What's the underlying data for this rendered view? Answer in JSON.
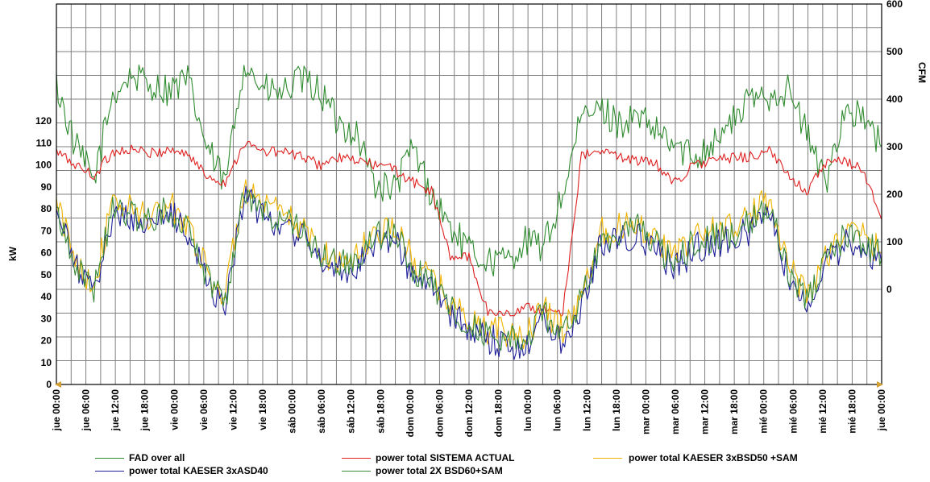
{
  "chart_data": {
    "type": "line",
    "ylabel_left": "kW",
    "ylabel_right": "CFM",
    "ylim_left": [
      0,
      120
    ],
    "yticks_left": [
      "0",
      "10",
      "20",
      "30",
      "40",
      "50",
      "60",
      "70",
      "80",
      "90",
      "100",
      "110",
      "120"
    ],
    "yticks_right": [
      "0",
      "100",
      "200",
      "300",
      "400",
      "500",
      "600"
    ],
    "ylim_right": [
      -200,
      600
    ],
    "grid": true,
    "legend_position": "bottom",
    "x_ticks": [
      "jue 00:00",
      "jue 06:00",
      "jue 12:00",
      "jue 18:00",
      "vie 00:00",
      "vie 06:00",
      "vie 12:00",
      "vie 18:00",
      "sáb 00:00",
      "sáb 06:00",
      "sáb 12:00",
      "sáb 18:00",
      "dom 00:00",
      "dom 06:00",
      "dom 12:00",
      "dom 18:00",
      "lun 00:00",
      "lun 06:00",
      "lun 12:00",
      "lun 18:00",
      "mar 00:00",
      "mar 06:00",
      "mar 12:00",
      "mar 18:00",
      "mié 00:00",
      "mié 06:00",
      "mié 12:00",
      "mié 18:00",
      "jue 00:00"
    ],
    "x_hours_per_tick": 6,
    "series": [
      {
        "name": "FAD over all",
        "axis": "right",
        "color": "#2e8b2e",
        "values": [
          430,
          300,
          230,
          410,
          450,
          430,
          420,
          440,
          300,
          220,
          480,
          420,
          410,
          440,
          420,
          350,
          330,
          220,
          210,
          300,
          200,
          130,
          80,
          60,
          60,
          100,
          90,
          200,
          360,
          380,
          350,
          360,
          330,
          300,
          280,
          310,
          350,
          400,
          410,
          420,
          330,
          220,
          380,
          360,
          300
        ]
      },
      {
        "name": "power total SISTEMA ACTUAL",
        "axis": "left",
        "color": "#e02020",
        "values": [
          106,
          100,
          95,
          106,
          107,
          105,
          107,
          105,
          95,
          92,
          110,
          106,
          106,
          104,
          100,
          103,
          102,
          100,
          98,
          92,
          88,
          58,
          58,
          33,
          32,
          35,
          34,
          33,
          104,
          106,
          104,
          102,
          100,
          92,
          100,
          102,
          103,
          104,
          106,
          96,
          88,
          100,
          102,
          98,
          75
        ]
      },
      {
        "name": "power total KAESER 3xBSD50 +SAM",
        "axis": "left",
        "color": "#f0b400",
        "values": [
          82,
          58,
          45,
          82,
          80,
          76,
          82,
          74,
          52,
          40,
          90,
          80,
          78,
          72,
          62,
          56,
          58,
          70,
          72,
          56,
          48,
          38,
          29,
          25,
          23,
          22,
          34,
          25,
          40,
          70,
          72,
          74,
          66,
          58,
          68,
          70,
          72,
          76,
          86,
          56,
          40,
          58,
          70,
          68,
          60
        ]
      },
      {
        "name": "power total KAESER 3xASD40",
        "axis": "left",
        "color": "#20209a",
        "values": [
          78,
          55,
          40,
          78,
          76,
          72,
          78,
          70,
          48,
          36,
          86,
          76,
          74,
          68,
          58,
          52,
          54,
          66,
          66,
          50,
          44,
          32,
          25,
          21,
          18,
          18,
          30,
          20,
          36,
          64,
          66,
          68,
          60,
          52,
          62,
          64,
          66,
          70,
          80,
          50,
          36,
          54,
          64,
          62,
          55
        ]
      },
      {
        "name": "power total 2X BSD60+SAM",
        "axis": "left",
        "color": "#3a8a3a",
        "values": [
          80,
          56,
          43,
          80,
          78,
          74,
          80,
          72,
          50,
          38,
          88,
          78,
          76,
          70,
          60,
          54,
          56,
          68,
          69,
          53,
          46,
          35,
          27,
          23,
          20,
          20,
          32,
          22,
          38,
          67,
          69,
          71,
          63,
          55,
          65,
          67,
          69,
          73,
          83,
          53,
          38,
          56,
          67,
          65,
          58
        ]
      }
    ]
  },
  "colors": {
    "grid": "#7f7f7f",
    "axis": "#000000",
    "arrow": "#d2a033"
  }
}
